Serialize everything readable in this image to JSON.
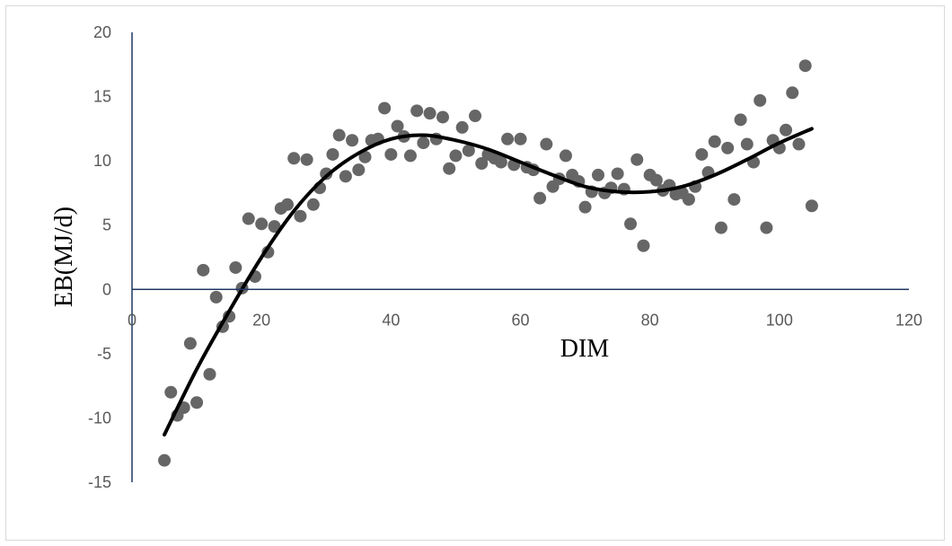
{
  "chart_data": {
    "type": "scatter",
    "title": "",
    "xlabel": "DIM",
    "ylabel": "EB(MJ/d)",
    "xlim": [
      0,
      120
    ],
    "ylim": [
      -15,
      20
    ],
    "xticks": [
      0,
      20,
      40,
      60,
      80,
      100,
      120
    ],
    "yticks": [
      -15,
      -10,
      -5,
      0,
      5,
      10,
      15,
      20
    ],
    "grid": false,
    "legend": "none",
    "colors": {
      "points": "#666666",
      "trendline": "#000000",
      "axis": "#1f3864",
      "tick_text": "#595959"
    },
    "series": [
      {
        "type": "scatter",
        "x": [
          5,
          6,
          7,
          8,
          9,
          10,
          11,
          12,
          13,
          14,
          15,
          16,
          17,
          18,
          19,
          20,
          21,
          22,
          23,
          24,
          25,
          26,
          27,
          28,
          29,
          30,
          31,
          32,
          33,
          34,
          35,
          36,
          37,
          38,
          39,
          40,
          41,
          42,
          43,
          44,
          45,
          46,
          47,
          48,
          49,
          50,
          51,
          52,
          53,
          54,
          55,
          56,
          57,
          58,
          59,
          60,
          61,
          62,
          63,
          64,
          65,
          66,
          67,
          68,
          69,
          70,
          71,
          72,
          73,
          74,
          75,
          76,
          77,
          78,
          79,
          80,
          81,
          82,
          83,
          84,
          85,
          86,
          87,
          88,
          89,
          90,
          91,
          92,
          93,
          94,
          95,
          96,
          97,
          98,
          99,
          100,
          101,
          102,
          103,
          104,
          105
        ],
        "y": [
          -13.3,
          -8,
          -9.8,
          -9.2,
          -4.2,
          -8.8,
          1.5,
          -6.6,
          -0.6,
          -2.9,
          -2.1,
          1.7,
          0.1,
          5.5,
          1,
          5.1,
          2.9,
          4.9,
          6.3,
          6.6,
          10.2,
          5.7,
          10.1,
          6.6,
          7.9,
          9,
          10.5,
          12,
          8.8,
          11.6,
          9.3,
          10.3,
          11.6,
          11.7,
          14.1,
          10.5,
          12.7,
          11.9,
          10.4,
          13.9,
          11.4,
          13.7,
          11.7,
          13.4,
          9.4,
          10.4,
          12.6,
          10.8,
          13.5,
          9.8,
          10.5,
          10.2,
          9.9,
          11.7,
          9.7,
          11.7,
          9.5,
          9.3,
          7.1,
          11.3,
          8,
          8.6,
          10.4,
          8.9,
          8.4,
          6.4,
          7.6,
          8.9,
          7.5,
          7.9,
          9,
          7.8,
          5.1,
          10.1,
          3.4,
          8.9,
          8.5,
          7.7,
          8.1,
          7.4,
          7.5,
          7,
          8,
          10.5,
          9.1,
          11.5,
          4.8,
          11,
          7,
          13.2,
          11.3,
          9.9,
          14.7,
          4.8,
          11.6,
          11,
          12.4,
          15.3,
          11.3,
          17.4,
          6.5
        ]
      },
      {
        "type": "line",
        "name": "",
        "x": [
          5,
          10,
          15,
          20,
          25,
          30,
          35,
          40,
          45,
          50,
          55,
          60,
          65,
          70,
          75,
          80,
          85,
          90,
          95,
          100,
          105
        ],
        "y": [
          -11.3,
          -6.2,
          -1.7,
          2.5,
          6.1,
          8.8,
          10.6,
          11.7,
          12.0,
          11.6,
          10.9,
          9.9,
          8.9,
          8.0,
          7.6,
          7.6,
          8.0,
          8.9,
          10.1,
          11.4,
          12.5
        ]
      }
    ]
  }
}
